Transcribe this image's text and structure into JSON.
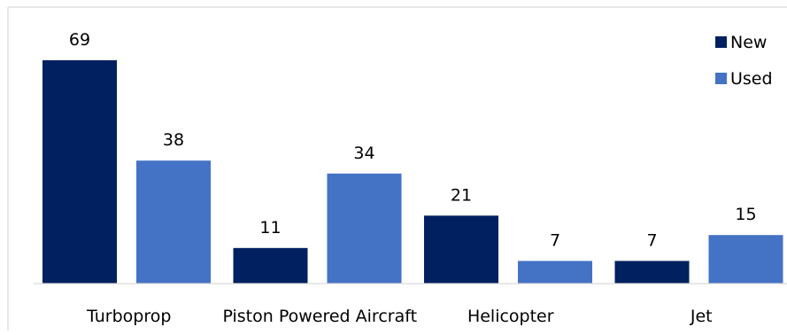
{
  "chart_data": {
    "type": "bar",
    "title": "",
    "xlabel": "",
    "ylabel": "",
    "categories": [
      "Turboprop",
      "Piston Powered Aircraft",
      "Helicopter",
      "Jet"
    ],
    "series": [
      {
        "name": "New",
        "values": [
          69,
          11,
          21,
          7
        ],
        "color": "#002060"
      },
      {
        "name": "Used",
        "values": [
          38,
          34,
          7,
          15
        ],
        "color": "#4472C4"
      }
    ],
    "ylim": [
      0,
      69
    ],
    "grid": false,
    "show_data_labels": true,
    "legend_position": "top-right",
    "axis_color": "#d9d9d9",
    "border_color": "#d9d9d9"
  }
}
